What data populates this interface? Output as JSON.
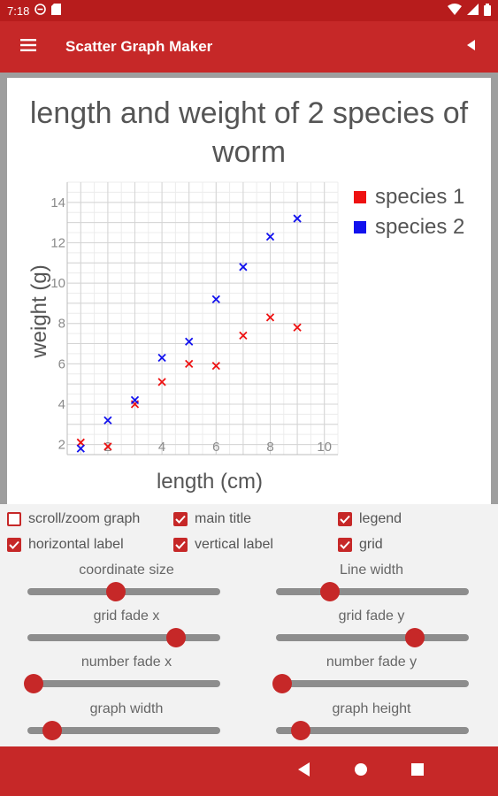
{
  "status_bar": {
    "time": "7:18"
  },
  "app_bar": {
    "title": "Scatter Graph Maker"
  },
  "chart_data": {
    "type": "scatter",
    "title": "length and weight of 2 species of worm",
    "xlabel": "length (cm)",
    "ylabel": "weight (g)",
    "xlim": [
      0.5,
      10.5
    ],
    "ylim": [
      1.5,
      15
    ],
    "x_ticks": [
      2,
      4,
      6,
      8,
      10
    ],
    "y_ticks": [
      2,
      4,
      6,
      8,
      10,
      12,
      14
    ],
    "grid": true,
    "legend_position": "top-right",
    "marker": "x",
    "series": [
      {
        "name": "species 1",
        "color": "#ee1111",
        "x": [
          1,
          2,
          3,
          4,
          5,
          6,
          7,
          8,
          9
        ],
        "y": [
          2.1,
          1.9,
          4.0,
          5.1,
          6.0,
          5.9,
          7.4,
          8.3,
          7.8
        ]
      },
      {
        "name": "species 2",
        "color": "#1111ee",
        "x": [
          1,
          2,
          3,
          4,
          5,
          6,
          7,
          8,
          9
        ],
        "y": [
          1.8,
          3.2,
          4.2,
          6.3,
          7.1,
          9.2,
          10.8,
          12.3,
          13.2
        ]
      }
    ]
  },
  "options": {
    "checkboxes": [
      {
        "label": "scroll/zoom graph",
        "checked": false
      },
      {
        "label": "main title",
        "checked": true
      },
      {
        "label": "legend",
        "checked": true
      },
      {
        "label": "horizontal label",
        "checked": true
      },
      {
        "label": "vertical label",
        "checked": true
      },
      {
        "label": "grid",
        "checked": true
      }
    ],
    "sliders": [
      {
        "label": "coordinate size",
        "value": 0.46
      },
      {
        "label": "Line width",
        "value": 0.28
      },
      {
        "label": "grid fade x",
        "value": 0.77
      },
      {
        "label": "grid fade y",
        "value": 0.72
      },
      {
        "label": "number fade x",
        "value": 0.03
      },
      {
        "label": "number fade y",
        "value": 0.03
      },
      {
        "label": "graph width",
        "value": 0.13
      },
      {
        "label": "graph height",
        "value": 0.13
      }
    ]
  },
  "colors": {
    "primary": "#c62828",
    "status_bar": "#b71c1c",
    "text_gray": "#555555"
  },
  "icons": {
    "menu": "hamburger-icon",
    "back": "triangle-left-icon",
    "camera": "camera-icon",
    "nav_back": "nav-back-icon",
    "nav_home": "nav-home-icon",
    "nav_recents": "nav-recents-icon"
  }
}
